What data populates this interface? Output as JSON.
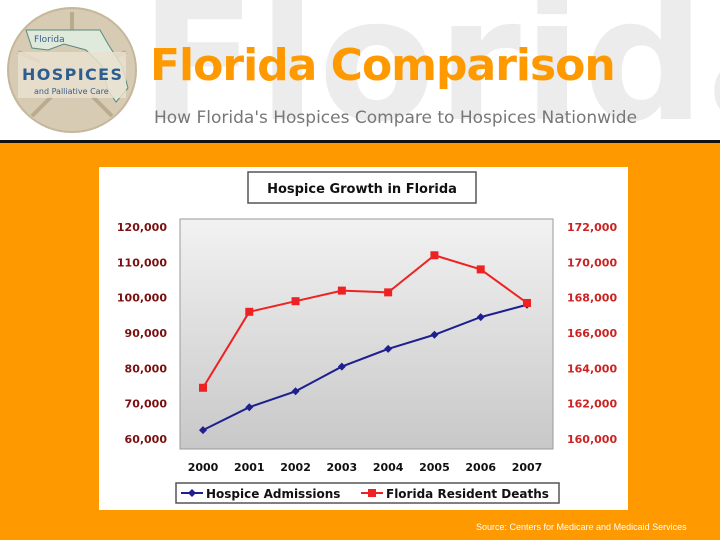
{
  "slide": {
    "title": "Florida Comparison",
    "subtitle": "How Florida's Hospices Compare to Hospices Nationwide",
    "background_word": "Florida",
    "source": "Source: Centers for Medicare and Medicaid Services",
    "colors": {
      "accent": "#ff9900",
      "background": "#ff9900",
      "divider": "#111111"
    }
  },
  "logo": {
    "line1": "Florida",
    "line2": "HOSPICES",
    "line3": "and Palliative Care",
    "icon": "sand-dollar-florida-map-logo"
  },
  "chart_data": {
    "type": "line",
    "title": "Hospice Growth in Florida",
    "categories": [
      "2000",
      "2001",
      "2002",
      "2003",
      "2004",
      "2005",
      "2006",
      "2007"
    ],
    "y_left": {
      "range": [
        60000,
        120000
      ],
      "ticks": [
        "60,000",
        "70,000",
        "80,000",
        "90,000",
        "100,000",
        "110,000",
        "120,000"
      ]
    },
    "y_right": {
      "range": [
        160000,
        172000
      ],
      "ticks": [
        "160,000",
        "162,000",
        "164,000",
        "166,000",
        "168,000",
        "170,000",
        "172,000"
      ]
    },
    "series": [
      {
        "name": "Hospice Admissions",
        "axis": "left",
        "color": "#1f1f8f",
        "marker": "diamond",
        "values": [
          62500,
          69000,
          73500,
          80500,
          85500,
          89500,
          94500,
          98000
        ]
      },
      {
        "name": "Florida Resident Deaths",
        "axis": "right",
        "color": "#ee2222",
        "marker": "square",
        "values": [
          162900,
          167200,
          167800,
          168400,
          168300,
          170400,
          169600,
          167700
        ]
      }
    ],
    "grid": false,
    "legend": "bottom",
    "left_label_color": "#7a1010",
    "right_label_color": "#cc2222"
  }
}
